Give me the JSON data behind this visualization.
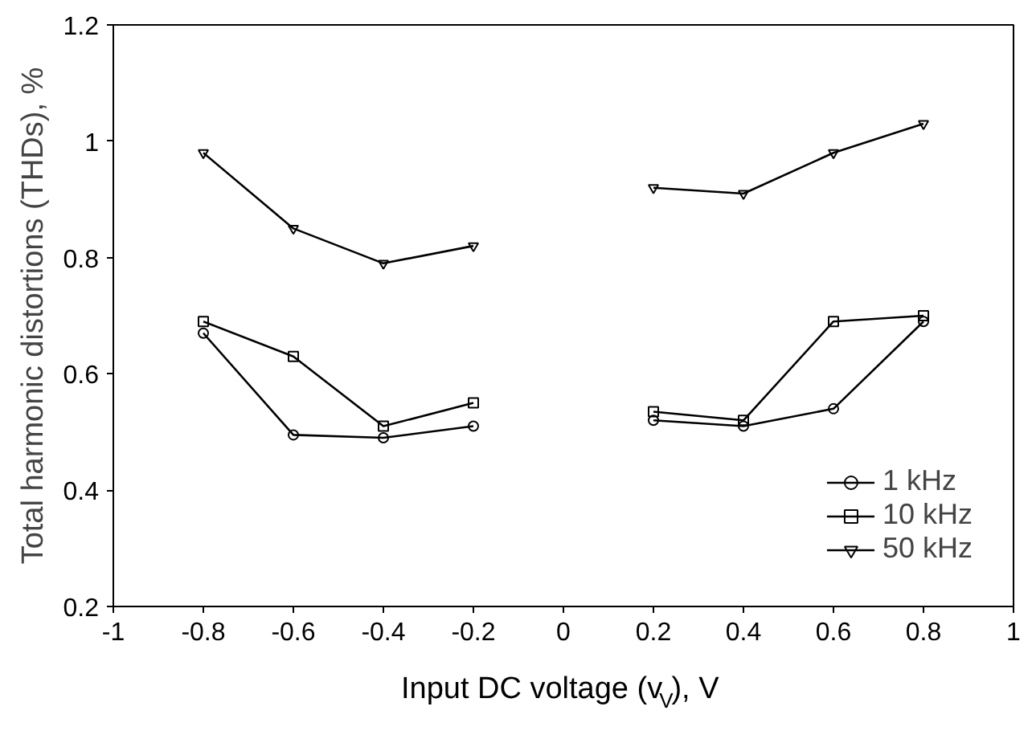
{
  "chart_data": {
    "type": "line",
    "xlabel": "Input DC voltage (v$_{V}$), V",
    "ylabel": "Total harmonic distortions (THDs), %",
    "x": [
      -0.8,
      -0.6,
      -0.4,
      -0.2,
      0,
      0.2,
      0.4,
      0.6,
      0.8
    ],
    "series": [
      {
        "name": "1 kHz",
        "color": "#000000",
        "marker": "circle",
        "values": [
          0.67,
          0.495,
          0.49,
          0.51,
          null,
          0.52,
          0.51,
          0.54,
          0.69
        ]
      },
      {
        "name": "10 kHz",
        "color": "#000000",
        "marker": "square",
        "values": [
          0.69,
          0.63,
          0.51,
          0.55,
          null,
          0.535,
          0.52,
          0.69,
          0.7
        ]
      },
      {
        "name": "50 kHz",
        "color": "#000000",
        "marker": "triangle",
        "values": [
          0.98,
          0.85,
          0.79,
          0.82,
          null,
          0.92,
          0.91,
          0.98,
          1.03
        ]
      }
    ],
    "xlim": [
      -1,
      1
    ],
    "xticks": [
      -1,
      -0.8,
      -0.6,
      -0.4,
      -0.2,
      0,
      0.2,
      0.4,
      0.6,
      0.8,
      1
    ],
    "ylim": [
      0.2,
      1.2
    ],
    "yticks": [
      0.2,
      0.4,
      0.6,
      0.8,
      1,
      1.2
    ],
    "grid": false,
    "legend": "bottom right",
    "line_style": "solid"
  }
}
